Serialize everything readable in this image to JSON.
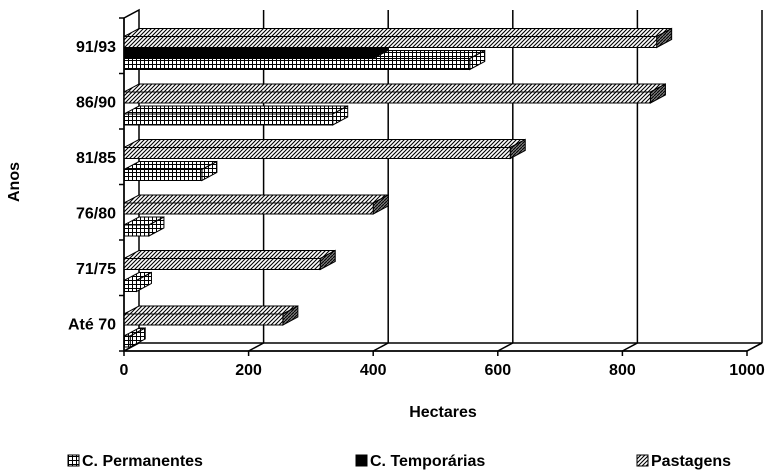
{
  "chart_data": {
    "type": "bar",
    "orientation": "horizontal",
    "title": "",
    "xlabel": "Hectares",
    "ylabel": "Anos",
    "xlim": [
      0,
      1000
    ],
    "x_ticks": [
      "0",
      "200",
      "400",
      "600",
      "800",
      "1000"
    ],
    "categories": [
      "Até 70",
      "71/75",
      "76/80",
      "81/85",
      "86/90",
      "91/93"
    ],
    "series": [
      {
        "name": "C. Permanentes",
        "values": [
          10,
          20,
          40,
          125,
          335,
          555
        ],
        "fill": "grid-pattern"
      },
      {
        "name": "C. Temporárias",
        "values": [
          0,
          0,
          0,
          0,
          0,
          400
        ],
        "fill": "solid-black"
      },
      {
        "name": "Pastagens",
        "values": [
          255,
          315,
          400,
          620,
          845,
          855
        ],
        "fill": "diagonal-hatch"
      }
    ],
    "grid": "vertical",
    "style": "3d-bars",
    "legend_position": "bottom"
  }
}
